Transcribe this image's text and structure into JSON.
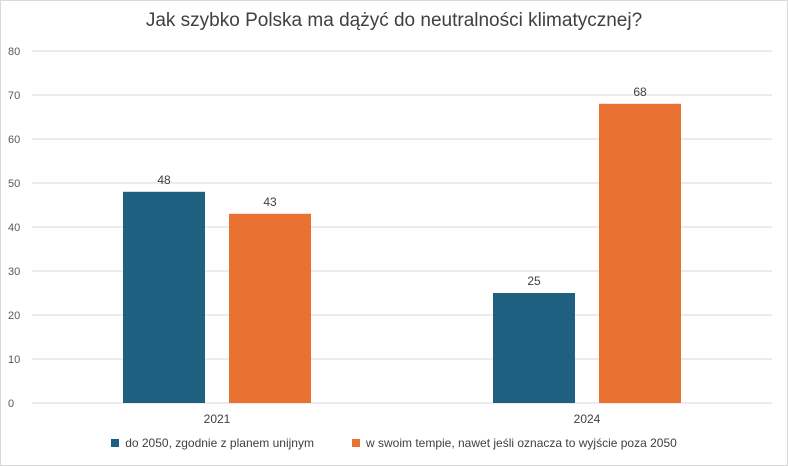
{
  "chart_data": {
    "type": "bar",
    "title": "Jak szybko Polska ma dążyć do neutralności klimatycznej?",
    "categories": [
      "2021",
      "2024"
    ],
    "series": [
      {
        "name": "do 2050, zgodnie z planem unijnym",
        "values": [
          48,
          25
        ],
        "color": "#1f5f80"
      },
      {
        "name": "w swoim tempie, nawet jeśli oznacza to wyjście poza 2050",
        "values": [
          43,
          68
        ],
        "color": "#e97132"
      }
    ],
    "ylim": [
      0,
      80
    ],
    "yticks": [
      0,
      10,
      20,
      30,
      40,
      50,
      60,
      70,
      80
    ],
    "grid": true,
    "legend_position": "bottom"
  }
}
